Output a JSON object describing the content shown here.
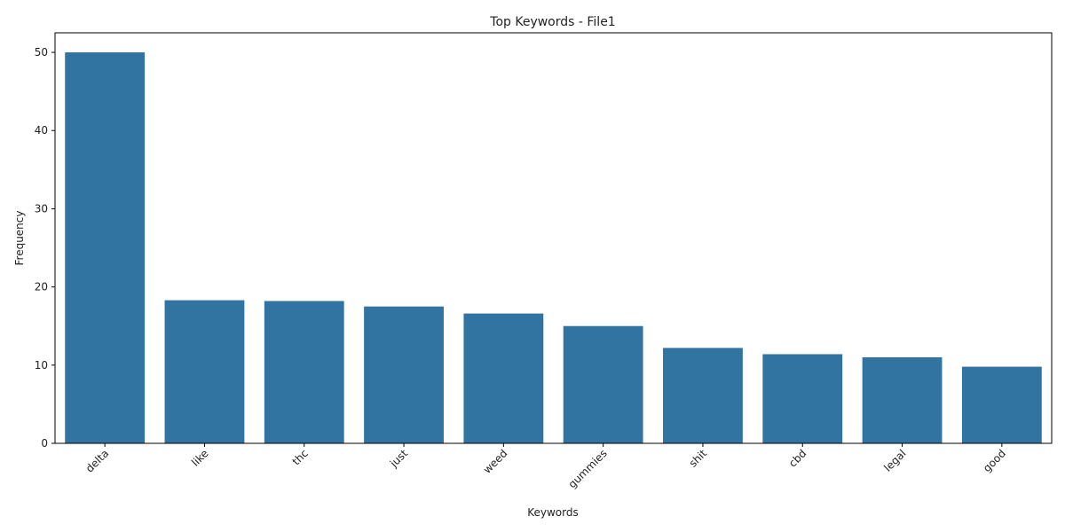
{
  "chart_data": {
    "type": "bar",
    "title": "Top Keywords - File1",
    "xlabel": "Keywords",
    "ylabel": "Frequency",
    "categories": [
      "delta",
      "like",
      "thc",
      "just",
      "weed",
      "gummies",
      "shit",
      "cbd",
      "legal",
      "good"
    ],
    "values": [
      50.0,
      18.3,
      18.2,
      17.5,
      16.6,
      15.0,
      12.2,
      11.4,
      11.0,
      9.8
    ],
    "ylim": [
      0,
      52.5
    ],
    "yticks": [
      0,
      10,
      20,
      30,
      40,
      50
    ],
    "grid": false,
    "bar_color": "#3274a1"
  }
}
